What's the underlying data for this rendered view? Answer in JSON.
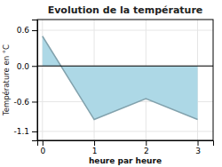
{
  "chart_data": {
    "type": "area",
    "title": "Evolution de la température",
    "xlabel": "heure par heure",
    "ylabel": "Température en °C",
    "x": [
      0,
      1,
      2,
      3
    ],
    "values": [
      0.5,
      -0.9,
      -0.55,
      -0.9
    ],
    "color": "#add8e6",
    "xlim": [
      -0.1,
      3.3
    ],
    "ylim": [
      -1.25,
      0.78
    ],
    "xticks": [
      0,
      1,
      2,
      3
    ],
    "yticks": [
      0.6,
      {
        "value": 0.0,
        "label": "0.0"
      },
      -0.6,
      -1.1
    ],
    "grid": true
  }
}
